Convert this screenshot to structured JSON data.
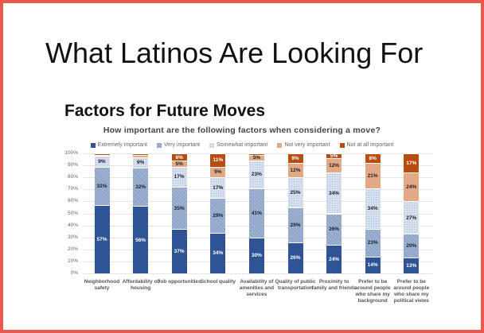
{
  "slide": {
    "title": "What Latinos Are Looking For",
    "subtitle": "Factors for Future Moves"
  },
  "chart_data": {
    "type": "bar",
    "stacked": true,
    "title": "How important are the following factors when considering a move?",
    "xlabel": "",
    "ylabel": "",
    "ylim": [
      0,
      100
    ],
    "yticks": [
      "0%",
      "10%",
      "20%",
      "30%",
      "40%",
      "50%",
      "60%",
      "70%",
      "80%",
      "90%",
      "100%"
    ],
    "grid": true,
    "legend_position": "top",
    "categories": [
      "Neighborhood safety",
      "Affordability of housing",
      "Job opportunities",
      "School quality",
      "Availability of amenities and services",
      "Quality of public transportation",
      "Proximity to family and friends",
      "Prefer to be around people who share my background",
      "Prefer to be around people who share my political views"
    ],
    "series": [
      {
        "name": "Extremely important",
        "color": "#2f5496",
        "label_color": "#ffffff",
        "pattern": "solid",
        "values": [
          57,
          56,
          37,
          34,
          30,
          26,
          24,
          14,
          13
        ]
      },
      {
        "name": "Very important",
        "color": "#8ea4c8",
        "label_color": "#222222",
        "pattern": "hatch",
        "values": [
          32,
          32,
          35,
          29,
          41,
          29,
          26,
          23,
          20
        ]
      },
      {
        "name": "Somewhat important",
        "color": "#d6e0ef",
        "label_color": "#222222",
        "pattern": "dots",
        "values": [
          9,
          9,
          17,
          17,
          23,
          25,
          34,
          34,
          27
        ]
      },
      {
        "name": "Not very important",
        "color": "#e3a987",
        "label_color": "#222222",
        "pattern": "solid",
        "values": [
          1,
          2,
          5,
          9,
          5,
          12,
          12,
          21,
          24
        ]
      },
      {
        "name": "Not at all important",
        "color": "#b84d12",
        "label_color": "#ffffff",
        "pattern": "solid",
        "values": [
          1,
          1,
          6,
          11,
          1,
          9,
          5,
          8,
          17
        ]
      }
    ]
  }
}
